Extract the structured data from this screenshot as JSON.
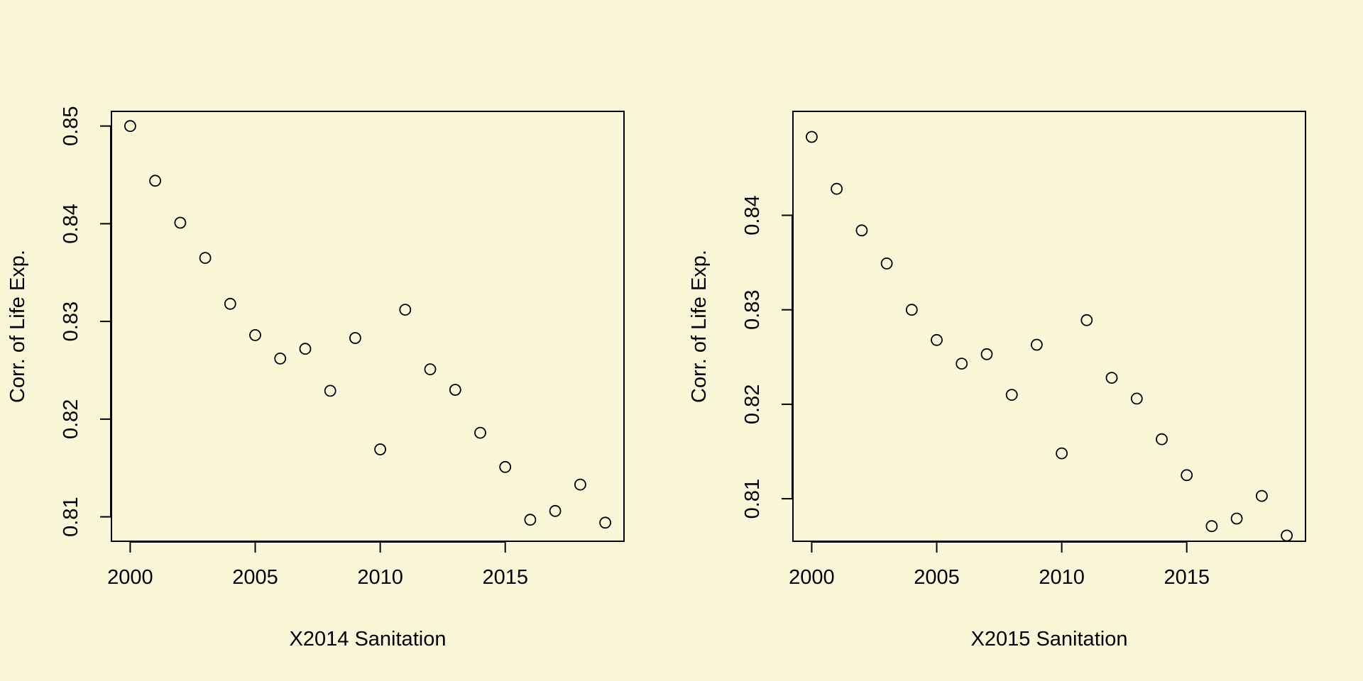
{
  "colors": {
    "background": "#faf7d9",
    "ink": "#000000"
  },
  "chart_data": [
    {
      "type": "scatter",
      "title": "",
      "xlabel": "X2014 Sanitation",
      "ylabel": "Corr. of Life Exp.",
      "xlim": [
        1999.25,
        2019.75
      ],
      "ylim": [
        0.8075,
        0.8515
      ],
      "xticks": [
        2000,
        2005,
        2010,
        2015
      ],
      "yticks": [
        0.81,
        0.82,
        0.83,
        0.84,
        0.85
      ],
      "xtick_labels": [
        "2000",
        "2005",
        "2010",
        "2015"
      ],
      "ytick_labels": [
        "0.81",
        "0.82",
        "0.83",
        "0.84",
        "0.85"
      ],
      "grid": false,
      "marker": "open-circle",
      "x": [
        2000,
        2001,
        2002,
        2003,
        2004,
        2005,
        2006,
        2007,
        2008,
        2009,
        2010,
        2011,
        2012,
        2013,
        2014,
        2015,
        2016,
        2017,
        2018,
        2019
      ],
      "y": [
        0.85,
        0.8444,
        0.8401,
        0.8365,
        0.8318,
        0.8286,
        0.8262,
        0.8272,
        0.8229,
        0.8283,
        0.8169,
        0.8312,
        0.8251,
        0.823,
        0.8186,
        0.8151,
        0.8097,
        0.8106,
        0.8133,
        0.8094
      ]
    },
    {
      "type": "scatter",
      "title": "",
      "xlabel": "X2015 Sanitation",
      "ylabel": "Corr. of Life Exp.",
      "xlim": [
        1999.25,
        2019.75
      ],
      "ylim": [
        0.8055,
        0.851
      ],
      "xticks": [
        2000,
        2005,
        2010,
        2015
      ],
      "yticks": [
        0.81,
        0.82,
        0.83,
        0.84
      ],
      "xtick_labels": [
        "2000",
        "2005",
        "2010",
        "2015"
      ],
      "ytick_labels": [
        "0.81",
        "0.82",
        "0.83",
        "0.84"
      ],
      "grid": false,
      "marker": "open-circle",
      "x": [
        2000,
        2001,
        2002,
        2003,
        2004,
        2005,
        2006,
        2007,
        2008,
        2009,
        2010,
        2011,
        2012,
        2013,
        2014,
        2015,
        2016,
        2017,
        2018,
        2019
      ],
      "y": [
        0.8483,
        0.8428,
        0.8384,
        0.8349,
        0.83,
        0.8268,
        0.8243,
        0.8253,
        0.821,
        0.8263,
        0.8148,
        0.8289,
        0.8228,
        0.8206,
        0.8163,
        0.8125,
        0.8071,
        0.8079,
        0.8103,
        0.8061
      ]
    }
  ]
}
